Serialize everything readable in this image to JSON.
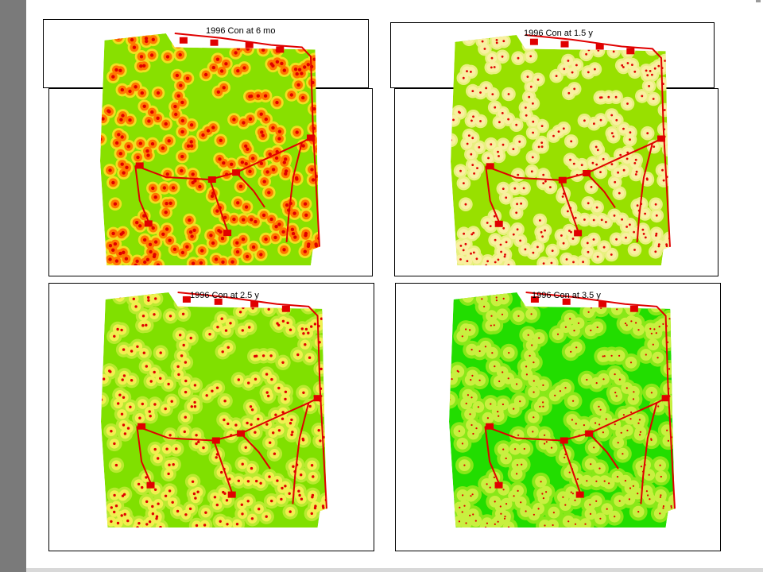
{
  "panels": [
    {
      "title": "1996 Con at 6 mo",
      "stage": "6 mo",
      "colors": {
        "background": "#88e000",
        "halo_outer": "#f0e020",
        "halo_mid": "#ff7800",
        "center": "#e00000"
      }
    },
    {
      "title": "1996 Con at 1.5 y",
      "stage": "1.5 y",
      "colors": {
        "background": "#98e000",
        "halo_outer": "#e8f080",
        "halo_mid": "#f8f0a0",
        "center": "#e00000"
      }
    },
    {
      "title": "1996 Con at 2.5 y",
      "stage": "2.5 y",
      "colors": {
        "background": "#80e000",
        "halo_outer": "#b8ea30",
        "halo_mid": "#f0f050",
        "center": "#e00000"
      }
    },
    {
      "title": "1996 Con at 3.5 y",
      "stage": "3.5 y",
      "colors": {
        "background": "#22dd00",
        "halo_outer": "#88e818",
        "halo_mid": "#c8f040",
        "center": "#e00000"
      }
    }
  ],
  "road_color": "#e00000"
}
